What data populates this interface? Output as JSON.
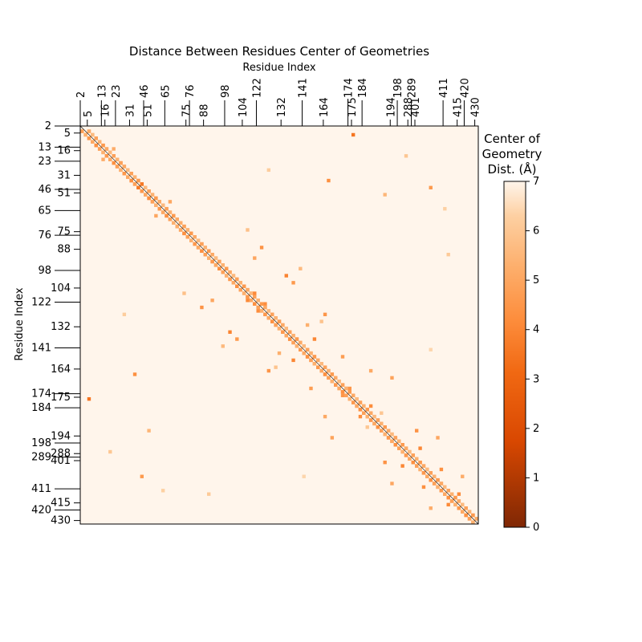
{
  "chart_data": {
    "type": "heatmap",
    "title": "Distance Between Residues Center of Geometries",
    "xlabel": "Residue Index",
    "ylabel": "Residue Index",
    "residue_labels": [
      "2",
      "5",
      "13",
      "16",
      "23",
      "31",
      "46",
      "51",
      "65",
      "75",
      "76",
      "88",
      "98",
      "104",
      "122",
      "132",
      "141",
      "164",
      "174",
      "175",
      "184",
      "194",
      "198",
      "288",
      "289",
      "401",
      "411",
      "415",
      "420",
      "430"
    ],
    "colorbar": {
      "title": [
        "Center of",
        "Geometry",
        "Dist. (Å)"
      ],
      "ticks": [
        "0",
        "1",
        "2",
        "3",
        "4",
        "5",
        "6",
        "7"
      ],
      "range": [
        0,
        7
      ],
      "colormap": "Oranges_r"
    },
    "matrix_size": 113,
    "diagonal_band": [
      {
        "start": 1,
        "end": 112,
        "value": 3.7
      },
      {
        "start": 1,
        "end": 112,
        "value": 4.3
      }
    ],
    "off_diagonal_contacts": [
      {
        "i": 2,
        "j": 77,
        "value": 3.5
      },
      {
        "i": 10,
        "j": 11,
        "value": 4.8
      },
      {
        "i": 6,
        "j": 9,
        "value": 5.2
      },
      {
        "i": 15,
        "j": 70,
        "value": 4.3
      },
      {
        "i": 16,
        "j": 17,
        "value": 3.6
      },
      {
        "i": 17,
        "j": 99,
        "value": 4.6
      },
      {
        "i": 21,
        "j": 25,
        "value": 5.0
      },
      {
        "i": 19,
        "j": 86,
        "value": 5.5
      },
      {
        "i": 27,
        "j": 28,
        "value": 5.2
      },
      {
        "i": 29,
        "j": 47,
        "value": 5.8
      },
      {
        "i": 34,
        "j": 51,
        "value": 4.4
      },
      {
        "i": 37,
        "j": 49,
        "value": 5.0
      },
      {
        "i": 40,
        "j": 62,
        "value": 5.6
      },
      {
        "i": 42,
        "j": 58,
        "value": 3.9
      },
      {
        "i": 44,
        "j": 60,
        "value": 4.6
      },
      {
        "i": 47,
        "j": 49,
        "value": 4.1
      },
      {
        "i": 50,
        "j": 52,
        "value": 4.2
      },
      {
        "i": 53,
        "j": 69,
        "value": 4.5
      },
      {
        "i": 56,
        "j": 64,
        "value": 5.3
      },
      {
        "i": 60,
        "j": 66,
        "value": 4.0
      },
      {
        "i": 65,
        "j": 74,
        "value": 4.7
      },
      {
        "i": 69,
        "j": 82,
        "value": 5.1
      },
      {
        "i": 71,
        "j": 88,
        "value": 4.9
      },
      {
        "i": 74,
        "j": 76,
        "value": 4.5
      },
      {
        "i": 79,
        "j": 82,
        "value": 4.2
      },
      {
        "i": 86,
        "j": 95,
        "value": 4.4
      },
      {
        "i": 88,
        "j": 101,
        "value": 5.0
      },
      {
        "i": 91,
        "j": 96,
        "value": 4.0
      },
      {
        "i": 97,
        "j": 102,
        "value": 4.3
      },
      {
        "i": 99,
        "j": 108,
        "value": 5.2
      },
      {
        "i": 104,
        "j": 107,
        "value": 4.1
      },
      {
        "i": 8,
        "j": 92,
        "value": 6.0
      },
      {
        "i": 12,
        "j": 53,
        "value": 6.2
      },
      {
        "i": 23,
        "j": 103,
        "value": 6.3
      },
      {
        "i": 36,
        "j": 104,
        "value": 6.1
      },
      {
        "i": 55,
        "j": 68,
        "value": 5.9
      },
      {
        "i": 63,
        "j": 99,
        "value": 6.4
      },
      {
        "i": 81,
        "j": 85,
        "value": 6.0
      }
    ]
  }
}
